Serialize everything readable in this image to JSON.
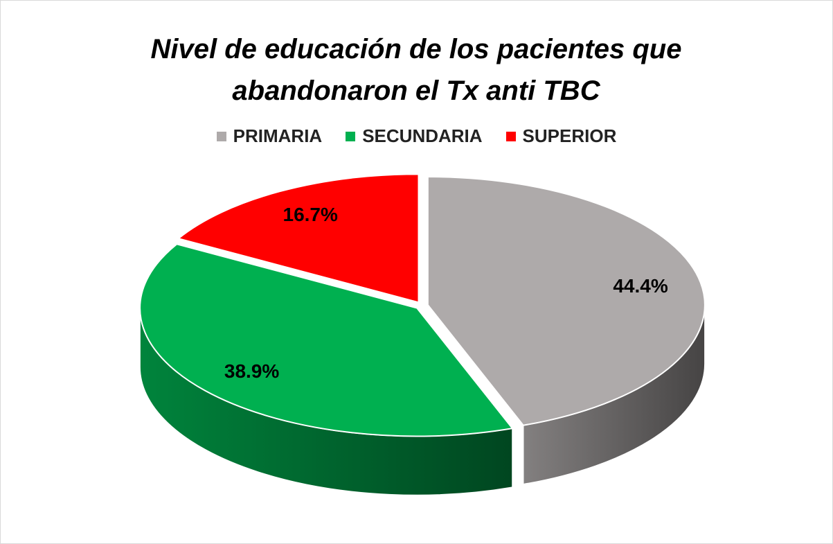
{
  "chart_data": {
    "type": "pie3d",
    "title": "Nivel de educación de los pacientes que abandonaron el Tx anti TBC",
    "categories": [
      "PRIMARIA",
      "SECUNDARIA",
      "SUPERIOR"
    ],
    "values": [
      44.4,
      38.9,
      16.7
    ],
    "value_labels": [
      "44.4%",
      "38.9%",
      "16.7%"
    ],
    "colors": [
      "#aeaaaa",
      "#00b050",
      "#ff0000"
    ],
    "legend": "top"
  }
}
